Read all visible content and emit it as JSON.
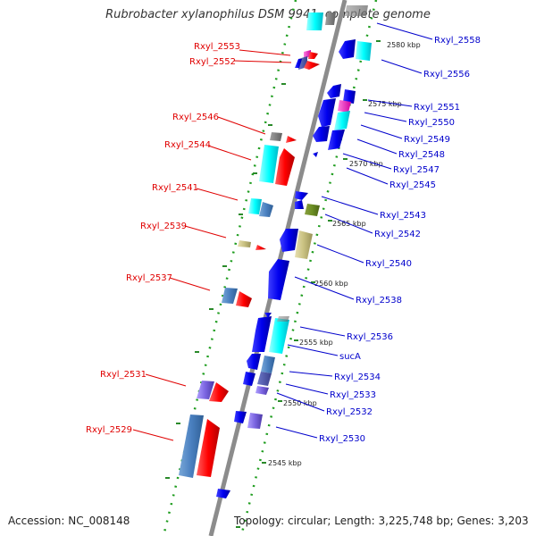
{
  "title": "Rubrobacter xylanophilus DSM 9941, complete genome",
  "footer": {
    "accession": "Accession: NC_008148",
    "summary": "Topology: circular; Length: 3,225,748 bp; Genes: 3,203"
  },
  "colors": {
    "backbone": "#8c8c8c",
    "ruler_dots": "#1f9d1f",
    "forward_label": "#e00000",
    "reverse_label": "#0000cc"
  },
  "ruler": [
    "2580 kbp",
    "2575 kbp",
    "2570 kbp",
    "2565 kbp",
    "2560 kbp",
    "2555 kbp",
    "2550 kbp",
    "2545 kbp"
  ],
  "labels_left": [
    "Rxyl_2553",
    "Rxyl_2552",
    "Rxyl_2546",
    "Rxyl_2544",
    "Rxyl_2541",
    "Rxyl_2539",
    "Rxyl_2537",
    "Rxyl_2531",
    "Rxyl_2529"
  ],
  "labels_right": [
    "Rxyl_2558",
    "Rxyl_2556",
    "Rxyl_2551",
    "Rxyl_2550",
    "Rxyl_2549",
    "Rxyl_2548",
    "Rxyl_2547",
    "Rxyl_2545",
    "Rxyl_2543",
    "Rxyl_2542",
    "Rxyl_2540",
    "Rxyl_2538",
    "Rxyl_2536",
    "sucA",
    "Rxyl_2534",
    "Rxyl_2533",
    "Rxyl_2532",
    "Rxyl_2530"
  ]
}
